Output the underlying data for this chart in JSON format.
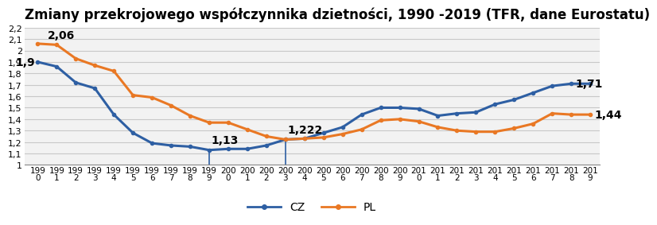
{
  "title": "Zmiany przekrojowego współczynnika dzietności, 1990 -2019 (TFR, dane Eurostatu)",
  "years": [
    1990,
    1991,
    1992,
    1993,
    1994,
    1995,
    1996,
    1997,
    1998,
    1999,
    2000,
    2001,
    2002,
    2003,
    2004,
    2005,
    2006,
    2007,
    2008,
    2009,
    2010,
    2011,
    2012,
    2013,
    2014,
    2015,
    2016,
    2017,
    2018,
    2019
  ],
  "CZ": [
    1.9,
    1.86,
    1.72,
    1.67,
    1.44,
    1.28,
    1.19,
    1.17,
    1.16,
    1.13,
    1.14,
    1.14,
    1.17,
    1.222,
    1.23,
    1.28,
    1.33,
    1.44,
    1.5,
    1.5,
    1.49,
    1.43,
    1.45,
    1.46,
    1.53,
    1.57,
    1.63,
    1.69,
    1.71,
    1.71
  ],
  "PL": [
    2.06,
    2.05,
    1.93,
    1.87,
    1.82,
    1.61,
    1.59,
    1.52,
    1.43,
    1.37,
    1.37,
    1.31,
    1.25,
    1.222,
    1.23,
    1.24,
    1.27,
    1.31,
    1.39,
    1.4,
    1.38,
    1.33,
    1.3,
    1.29,
    1.29,
    1.32,
    1.36,
    1.45,
    1.44,
    1.44
  ],
  "CZ_color": "#2E5FA3",
  "PL_color": "#E97824",
  "ylim_min": 1.0,
  "ylim_max": 2.2,
  "yticks": [
    1.0,
    1.1,
    1.2,
    1.3,
    1.4,
    1.5,
    1.6,
    1.7,
    1.8,
    1.9,
    2.0,
    2.1,
    2.2
  ],
  "ytick_labels": [
    "1",
    "1,1",
    "1,2",
    "1,3",
    "1,4",
    "1,5",
    "1,6",
    "1,7",
    "1,8",
    "1,9",
    "2",
    "2,1",
    "2,2"
  ],
  "background_color": "#FFFFFF",
  "plot_bg_color": "#F2F2F2",
  "grid_color": "#C8C8C8",
  "title_fontsize": 12,
  "linewidth": 2.2,
  "markersize": 3
}
